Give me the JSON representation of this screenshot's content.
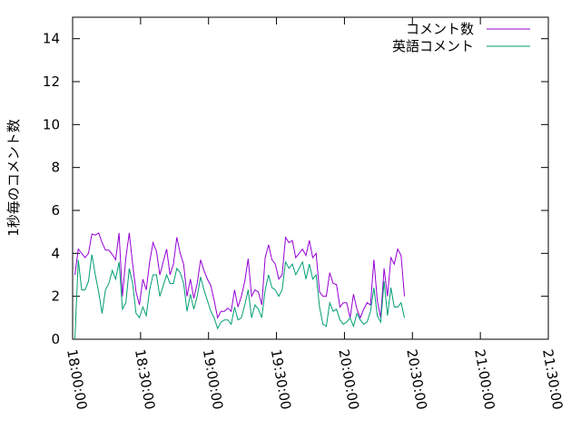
{
  "chart_data": {
    "type": "line",
    "ylabel": "1秒毎のコメント数",
    "xlabel": "",
    "xlim": [
      "18:00:00",
      "21:30:00"
    ],
    "ylim": [
      0,
      15
    ],
    "x_ticks": [
      "18:00:00",
      "18:30:00",
      "19:00:00",
      "19:30:00",
      "20:00:00",
      "20:30:00",
      "21:00:00",
      "21:30:00"
    ],
    "y_ticks": [
      "0",
      "2",
      "4",
      "6",
      "8",
      "10",
      "12",
      "14"
    ],
    "grid": false,
    "legend_position": "top-right",
    "x_start": "18:01:00",
    "x_step_minutes": 1.5,
    "series": [
      {
        "name": "コメント数",
        "color": "#9400d3",
        "values": [
          3.0,
          4.2,
          4.0,
          3.8,
          4.0,
          4.9,
          4.85,
          4.95,
          4.5,
          4.15,
          4.15,
          3.95,
          3.7,
          4.95,
          2.0,
          3.8,
          4.95,
          3.5,
          2.2,
          1.6,
          2.8,
          2.3,
          3.6,
          4.5,
          4.1,
          3.0,
          3.6,
          4.2,
          3.0,
          3.5,
          4.75,
          4.0,
          3.5,
          2.0,
          2.8,
          1.9,
          2.6,
          3.7,
          3.2,
          2.8,
          2.5,
          1.8,
          1.0,
          1.3,
          1.3,
          1.45,
          1.3,
          2.3,
          1.5,
          2.0,
          2.7,
          3.75,
          2.0,
          2.3,
          2.2,
          1.6,
          3.8,
          4.4,
          3.7,
          3.5,
          2.8,
          3.0,
          4.75,
          4.5,
          4.6,
          3.8,
          4.0,
          4.2,
          3.9,
          4.6,
          3.8,
          4.0,
          2.2,
          2.0,
          2.0,
          3.1,
          2.6,
          2.55,
          1.5,
          1.7,
          1.7,
          1.0,
          2.1,
          1.4,
          1.0,
          1.4,
          1.7,
          1.6,
          3.7,
          1.8,
          1.0,
          3.3,
          2.0,
          3.8,
          3.5,
          4.2,
          3.9,
          2.0
        ]
      },
      {
        "name": "英語コメント",
        "color": "#009e73",
        "values": [
          0.0,
          3.7,
          2.3,
          2.3,
          2.7,
          3.95,
          3.0,
          2.2,
          1.2,
          2.3,
          2.6,
          3.2,
          2.8,
          3.6,
          1.4,
          1.7,
          3.3,
          2.6,
          1.2,
          1.0,
          1.5,
          1.1,
          2.3,
          3.0,
          3.0,
          2.0,
          2.5,
          3.0,
          2.6,
          2.6,
          3.3,
          3.1,
          2.6,
          1.3,
          2.1,
          1.4,
          2.0,
          2.9,
          2.3,
          1.8,
          1.3,
          1.0,
          0.5,
          0.8,
          0.9,
          0.9,
          0.7,
          1.5,
          0.9,
          1.0,
          1.6,
          2.3,
          1.0,
          1.6,
          1.4,
          1.0,
          2.3,
          3.0,
          2.4,
          2.3,
          2.0,
          2.3,
          3.6,
          3.3,
          3.5,
          3.0,
          3.3,
          3.6,
          2.8,
          3.5,
          2.8,
          3.0,
          1.5,
          0.7,
          0.6,
          1.7,
          1.3,
          1.4,
          0.9,
          0.7,
          0.8,
          1.0,
          0.6,
          1.2,
          0.9,
          0.7,
          0.8,
          1.3,
          2.4,
          1.1,
          0.8,
          2.7,
          1.1,
          2.4,
          1.5,
          1.5,
          1.7,
          1.0
        ]
      }
    ]
  }
}
